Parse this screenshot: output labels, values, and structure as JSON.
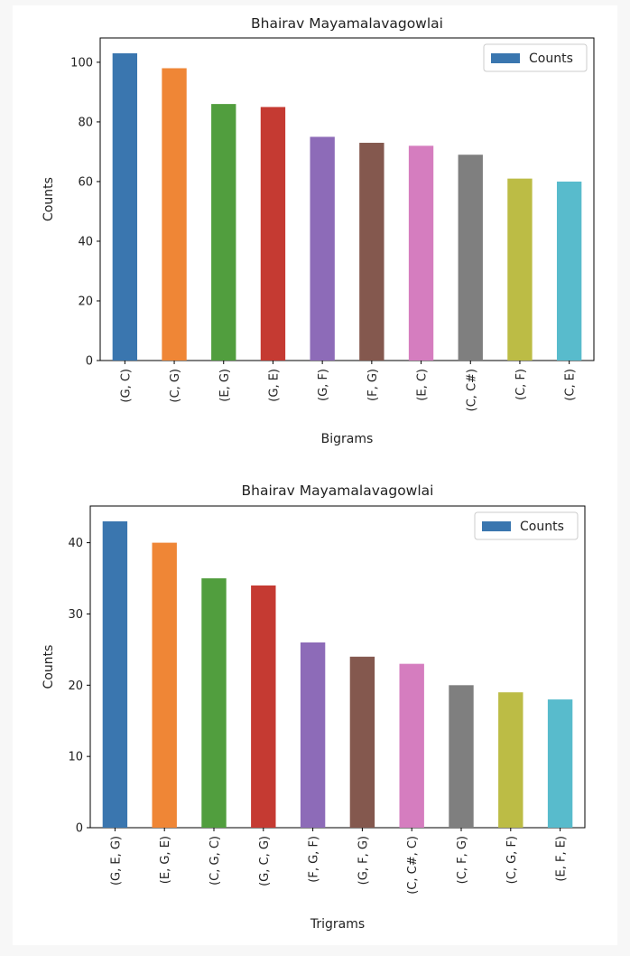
{
  "colors": [
    "#3a76af",
    "#ef8636",
    "#519e3e",
    "#c53a32",
    "#8d6bb8",
    "#84584e",
    "#d57dbf",
    "#7f7f7f",
    "#bcbc45",
    "#58bbcc"
  ],
  "chart_data": [
    {
      "type": "bar",
      "title": "Bhairav Mayamalavagowlai",
      "xlabel": "Bigrams",
      "ylabel": "Counts",
      "legend": {
        "label": "Counts",
        "placement": "top-right"
      },
      "categories": [
        "(G, C)",
        "(C, G)",
        "(E, G)",
        "(G, E)",
        "(G, F)",
        "(F, G)",
        "(E, C)",
        "(C, C#)",
        "(C, F)",
        "(C, E)"
      ],
      "series": [
        {
          "name": "Counts",
          "values": [
            103,
            98,
            86,
            85,
            75,
            73,
            72,
            69,
            61,
            60
          ]
        }
      ],
      "ylim": [
        0,
        108.15
      ],
      "yticks": [
        0,
        20,
        40,
        60,
        80,
        100
      ],
      "grid": false
    },
    {
      "type": "bar",
      "title": "Bhairav Mayamalavagowlai",
      "xlabel": "Trigrams",
      "ylabel": "Counts",
      "legend": {
        "label": "Counts",
        "placement": "top-right"
      },
      "categories": [
        "(G, E, G)",
        "(E, G, E)",
        "(C, G, C)",
        "(G, C, G)",
        "(F, G, F)",
        "(G, F, G)",
        "(C, C#, C)",
        "(C, F, G)",
        "(C, G, F)",
        "(E, F, E)"
      ],
      "series": [
        {
          "name": "Counts",
          "values": [
            43,
            40,
            35,
            34,
            26,
            24,
            23,
            20,
            19,
            18
          ]
        }
      ],
      "ylim": [
        0,
        45.15
      ],
      "yticks": [
        0,
        10,
        20,
        30,
        40
      ],
      "grid": false
    }
  ]
}
